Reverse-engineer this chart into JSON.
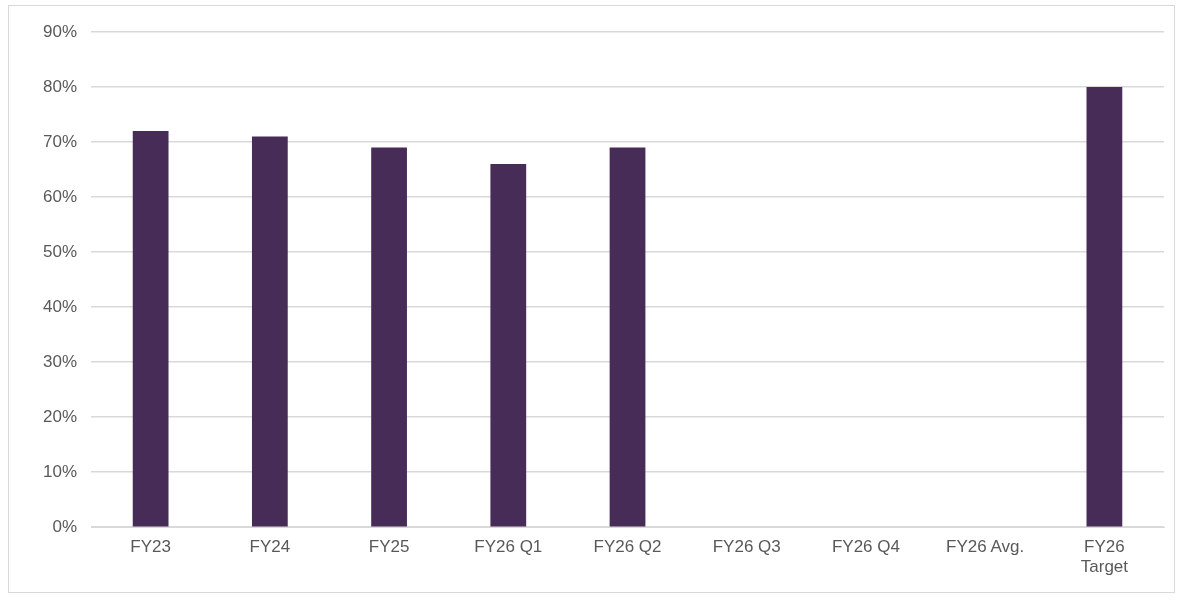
{
  "chart_data": {
    "type": "bar",
    "categories": [
      "FY23",
      "FY24",
      "FY25",
      "FY26 Q1",
      "FY26 Q2",
      "FY26 Q3",
      "FY26 Q4",
      "FY26 Avg.",
      "FY26 Target"
    ],
    "values": [
      72,
      71,
      69,
      66,
      69,
      null,
      null,
      null,
      80
    ],
    "color": "#472c58",
    "ylim": [
      0,
      90
    ],
    "yticks": [
      {
        "value": 0,
        "label": "0%"
      },
      {
        "value": 10,
        "label": "10%"
      },
      {
        "value": 20,
        "label": "20%"
      },
      {
        "value": 30,
        "label": "30%"
      },
      {
        "value": 40,
        "label": "40%"
      },
      {
        "value": 50,
        "label": "50%"
      },
      {
        "value": 60,
        "label": "60%"
      },
      {
        "value": 70,
        "label": "70%"
      },
      {
        "value": 80,
        "label": "80%"
      },
      {
        "value": 90,
        "label": "90%"
      }
    ],
    "grid": "y",
    "legend": false
  }
}
